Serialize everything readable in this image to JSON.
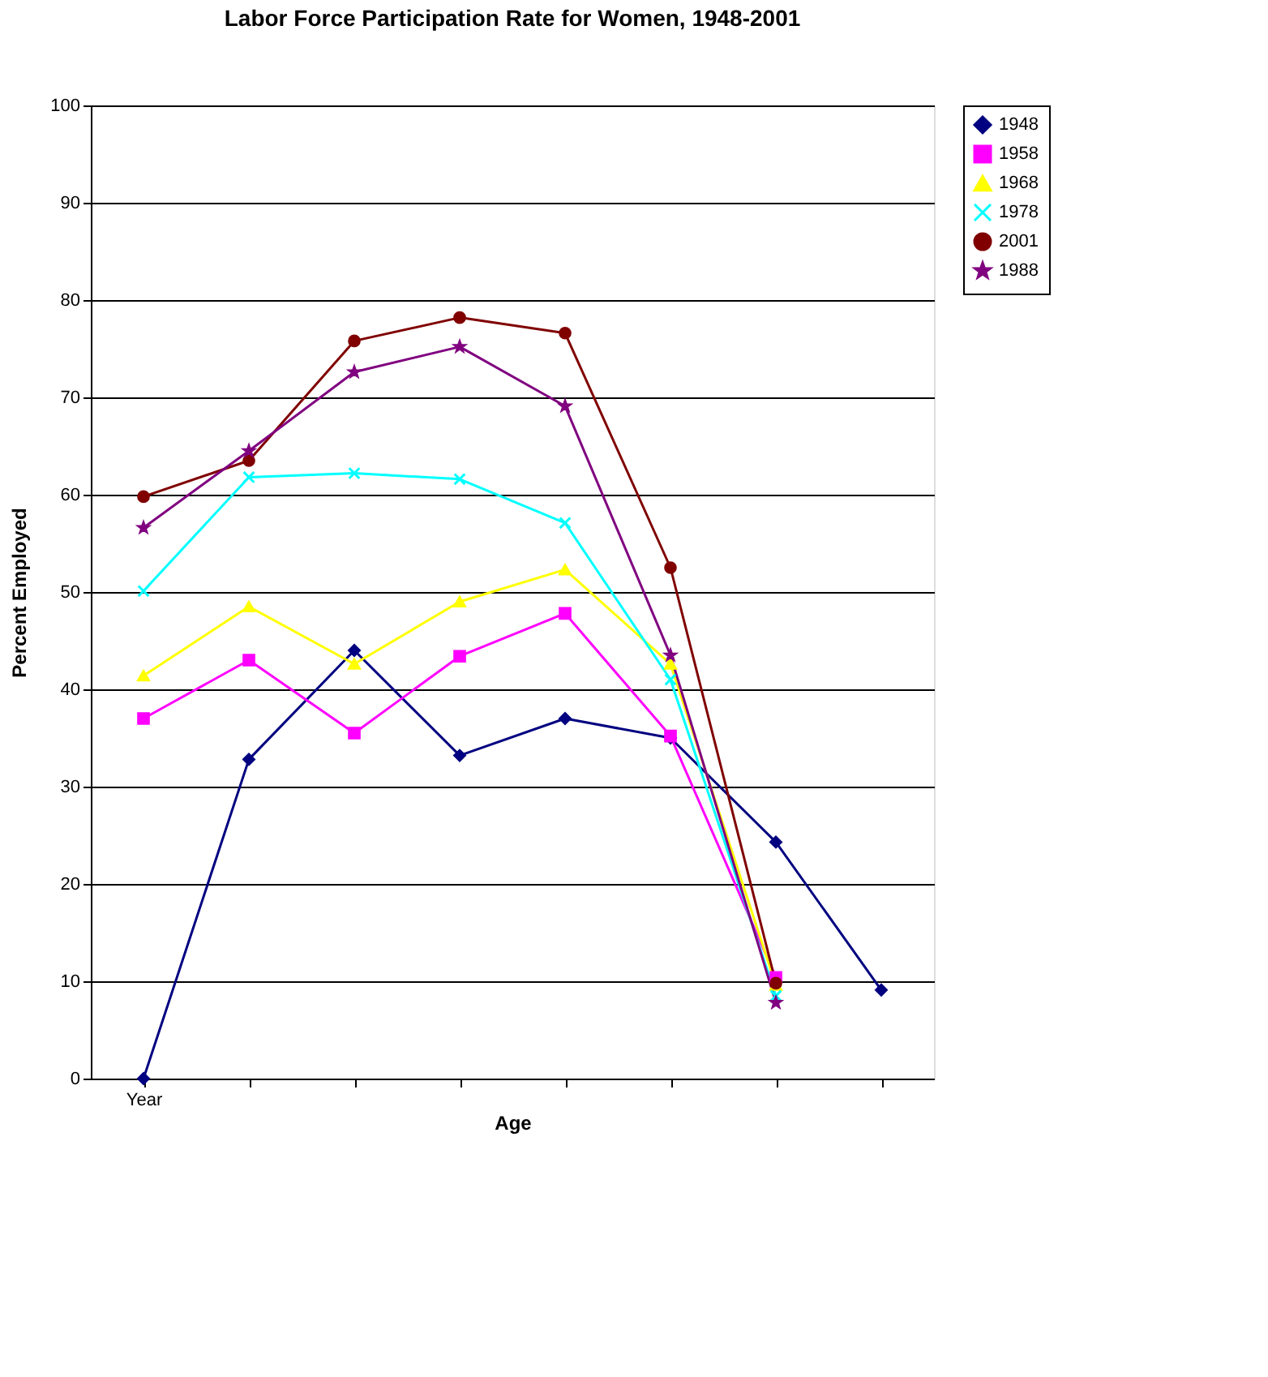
{
  "chart_data": {
    "type": "line",
    "title": "Labor Force Participation Rate for Women, 1948-2001",
    "xlabel": "Age",
    "ylabel": "Percent Employed",
    "categories": [
      "Year",
      null,
      null,
      null,
      null,
      null,
      null,
      null
    ],
    "ylim": [
      0,
      100
    ],
    "yticks": [
      0,
      10,
      20,
      30,
      40,
      50,
      60,
      70,
      80,
      90,
      100
    ],
    "grid": "y",
    "legend": "right",
    "series": [
      {
        "name": "1948",
        "color": "#000080",
        "marker": "diamond",
        "values": [
          0,
          32.8,
          44,
          33.2,
          37,
          35,
          24.3,
          9.1
        ]
      },
      {
        "name": "1958",
        "color": "#ff00ff",
        "marker": "square",
        "values": [
          37,
          43,
          35.5,
          43.4,
          47.8,
          35.2,
          10.4,
          null
        ]
      },
      {
        "name": "1968",
        "color": "#ffff00",
        "marker": "triangle",
        "values": [
          41.4,
          48.5,
          42.6,
          49,
          52.3,
          42.6,
          9.6,
          null
        ]
      },
      {
        "name": "1978",
        "color": "#00ffff",
        "marker": "cross",
        "values": [
          50.1,
          61.8,
          62.2,
          61.6,
          57.1,
          41,
          8.5,
          null
        ]
      },
      {
        "name": "2001",
        "color": "#800000",
        "marker": "circle",
        "values": [
          59.8,
          63.5,
          75.8,
          78.2,
          76.6,
          52.5,
          9.8,
          null
        ]
      },
      {
        "name": "1988",
        "color": "#800080",
        "marker": "star",
        "values": [
          56.6,
          64.5,
          72.6,
          75.2,
          69.1,
          43.5,
          7.8,
          null
        ]
      }
    ]
  }
}
